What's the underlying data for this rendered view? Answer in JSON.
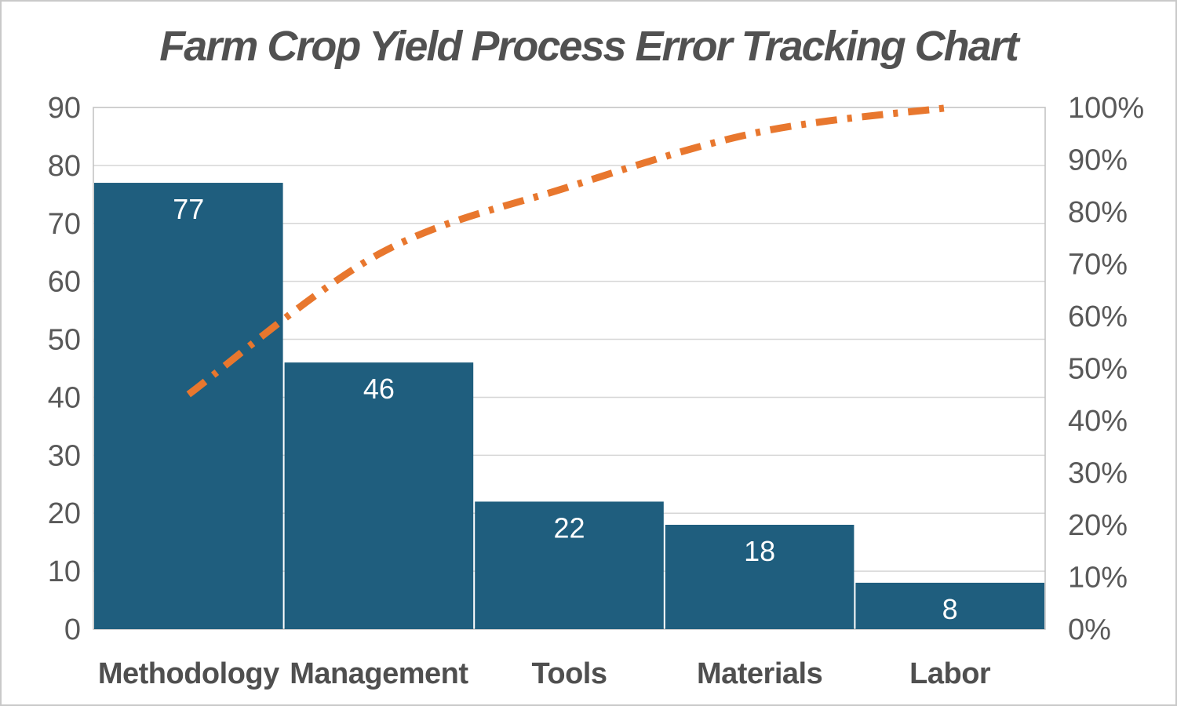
{
  "chart_data": {
    "type": "pareto",
    "title": "Farm Crop Yield Process Error Tracking Chart",
    "categories": [
      "Methodology",
      "Management",
      "Tools",
      "Materials",
      "Labor"
    ],
    "series": [
      {
        "name": "error-count-bars",
        "type": "bar",
        "values": [
          77,
          46,
          22,
          18,
          8
        ]
      },
      {
        "name": "cumulative-percent-line",
        "type": "line",
        "values": [
          45.0,
          71.9,
          84.8,
          95.3,
          100.0
        ]
      }
    ],
    "bar_labels": [
      "77",
      "46",
      "22",
      "18",
      "8"
    ],
    "left_axis": {
      "range": [
        0,
        90
      ],
      "tick_step": 10,
      "tick_labels": [
        "0",
        "10",
        "20",
        "30",
        "40",
        "50",
        "60",
        "70",
        "80",
        "90"
      ]
    },
    "right_axis": {
      "range": [
        0,
        100
      ],
      "tick_step": 10,
      "tick_labels": [
        "0%",
        "10%",
        "20%",
        "30%",
        "40%",
        "50%",
        "60%",
        "70%",
        "80%",
        "90%",
        "100%"
      ]
    },
    "grid": "horizontal-on",
    "legend": "none",
    "line_style": "dash-dot-smooth",
    "colors": {
      "bar": "#1f5e7e",
      "line": "#e8772e",
      "grid": "#d6d6d6",
      "plot_border": "#c0c0c0",
      "axis_text": "#595959",
      "category_text": "#4f4f4f",
      "title_text": "#515151",
      "bar_label_text": "#ffffff"
    }
  }
}
